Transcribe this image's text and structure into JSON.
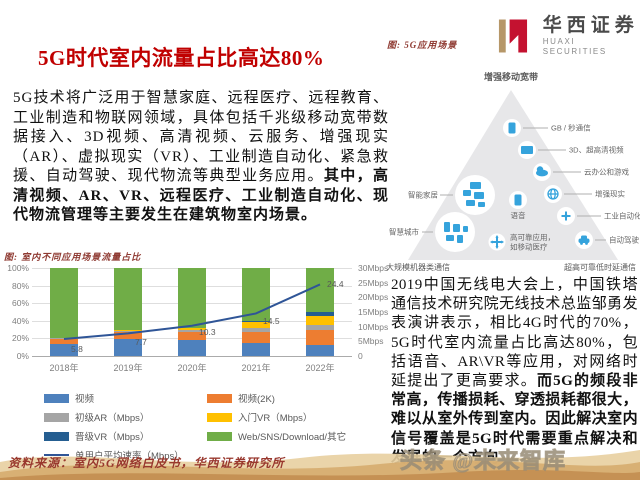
{
  "header": {
    "title": "5G时代室内流量占比高达80%",
    "logo": {
      "cn": "华西证券",
      "en": "HUAXI SECURITIES"
    }
  },
  "left": {
    "para_normal": "5G技术将广泛用于智慧家庭、远程医疗、远程教育、工业制造和物联网领域，具体包括千兆级移动宽带数据接入、3D视频、高清视频、云服务、增强现实（AR）、虚拟现实（VR）、工业制造自动化、紧急救援、自动驾驶、现代物流等典型业务应用。",
    "para_bold": "其中，高清视频、AR、VR、远程医疗、工业制造自动化、现代物流管理等主要发生在建筑物室内场景。",
    "chart_caption": "图: 室内不同应用场景流量占比"
  },
  "right": {
    "diagram_caption": "图: 5G应用场景",
    "para_normal": "2019中国无线电大会上，中国铁塔通信技术研究院无线技术总监邹勇发表演讲表示，相比4G时代的70%，5G时代室内流量占比高达80%，包括语音、AR\\VR等应用，对网络时延提出了更高要求。",
    "para_bold": "而5G的频段非常高，传播损耗、穿透损耗都很大，难以从室外传到室内。因此解决室内信号覆盖是5G时代需要重点解决和发展的一个方向"
  },
  "diagram": {
    "top": "增强移动宽带",
    "bottom_left": "大规模机器类通信",
    "bottom_right": "超高可靠低时延通信",
    "right_items": [
      "GB / 秒通信",
      "3D、超高清视频",
      "云办公和游戏",
      "增强现实",
      "工业自动化",
      "自动驾驶"
    ],
    "left_items": [
      "智能家居",
      "智慧城市"
    ],
    "center_voice": "语音",
    "center_reliable_1": "高可靠应用，",
    "center_reliable_2": "如移动医疗",
    "icon_color": "#35A3DC"
  },
  "chart_data": {
    "type": "bar",
    "stacked": true,
    "title": "图: 室内不同应用场景流量占比",
    "categories": [
      "2018年",
      "2019年",
      "2020年",
      "2021年",
      "2022年"
    ],
    "series": [
      {
        "name": "视频",
        "color": "#4E81BD",
        "values": [
          14,
          19,
          18,
          15,
          12
        ]
      },
      {
        "name": "视频(2K)",
        "color": "#ED7D31",
        "values": [
          6,
          8,
          9,
          12,
          17
        ]
      },
      {
        "name": "初级AR（Mbps）",
        "color": "#A5A5A5",
        "values": [
          1,
          2,
          3,
          5,
          6
        ]
      },
      {
        "name": "入门VR（Mbps）",
        "color": "#FFC000",
        "values": [
          0,
          1,
          2,
          7,
          11
        ]
      },
      {
        "name": "晋级VR（Mbps）",
        "color": "#255E91",
        "values": [
          0,
          0,
          0,
          1,
          4
        ]
      },
      {
        "name": "Web/SNS/Download/其它",
        "color": "#70AD47",
        "values": [
          79,
          70,
          68,
          60,
          50
        ]
      }
    ],
    "line_series": {
      "name": "单用户平均速率（Mbps）",
      "color": "#2F5597",
      "values": [
        5.8,
        7.7,
        10.3,
        14.5,
        24.4
      ],
      "axis": "right"
    },
    "left_axis": {
      "min": 0,
      "max": 100,
      "ticks": [
        {
          "value": 100,
          "label": "100%"
        },
        {
          "value": 80,
          "label": "80%"
        },
        {
          "value": 60,
          "label": "60%"
        },
        {
          "value": 40,
          "label": "40%"
        },
        {
          "value": 20,
          "label": "20%"
        },
        {
          "value": 0,
          "label": "0%"
        }
      ]
    },
    "right_axis": {
      "min": 0,
      "max": 30,
      "ticks": [
        {
          "value": 30,
          "label": "30Mbps"
        },
        {
          "value": 25,
          "label": "25Mbps"
        },
        {
          "value": 20,
          "label": "20Mbps"
        },
        {
          "value": 15,
          "label": "15Mbps"
        },
        {
          "value": 10,
          "label": "10Mbps"
        },
        {
          "value": 5,
          "label": "5Mbps"
        },
        {
          "value": 0,
          "label": "0"
        }
      ]
    },
    "grid": true,
    "legend_position": "bottom"
  },
  "footer": {
    "source": "资料来源：室内5G网络白皮书，华西证券研究所",
    "watermark": "头条 @未来智库"
  }
}
